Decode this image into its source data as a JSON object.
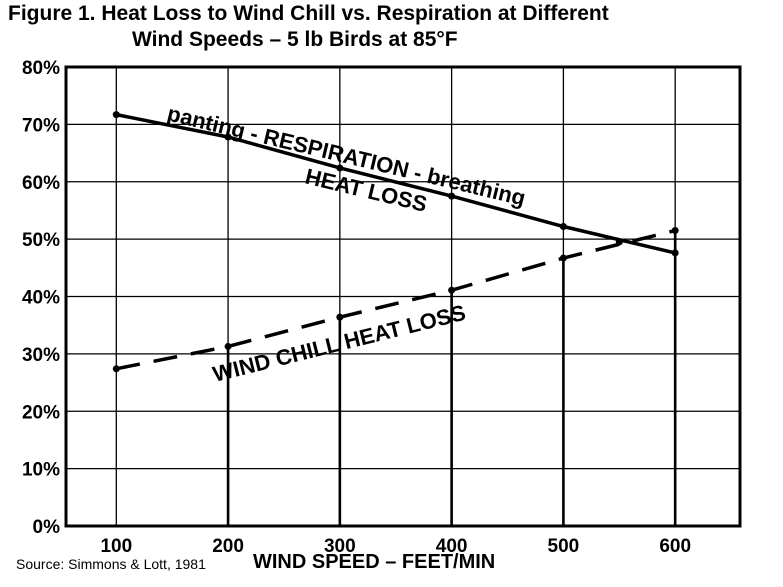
{
  "chart_data": {
    "type": "line",
    "title": "Figure 1. Heat Loss to Wind Chill vs. Respiration at Different",
    "subtitle": "Wind Speeds – 5 lb Birds at 85°F",
    "xlabel": "WIND SPEED – FEET/MIN",
    "ylabel": "",
    "x": [
      100,
      200,
      300,
      400,
      500,
      600
    ],
    "xlim": [
      55,
      658
    ],
    "ylim": [
      0,
      80
    ],
    "xticks": [
      "100",
      "200",
      "300",
      "400",
      "500",
      "600"
    ],
    "yticks": [
      "0%",
      "10%",
      "20%",
      "30%",
      "40%",
      "50%",
      "60%",
      "70%",
      "80%"
    ],
    "grid": true,
    "series": [
      {
        "name": "RESPIRATION HEAT LOSS",
        "style": "solid",
        "values": [
          71.7,
          67.8,
          62.4,
          57.5,
          52.2,
          47.6
        ]
      },
      {
        "name": "WIND CHILL HEAT LOSS",
        "style": "dashed",
        "values": [
          27.4,
          31.3,
          36.4,
          41.1,
          46.7,
          51.5
        ]
      }
    ],
    "crossover": {
      "x": 550,
      "y": 49.5
    },
    "annotations": {
      "respiration": "panting  -  RESPIRATION  -  breathing",
      "respiration_sub": "HEAT LOSS",
      "wind_chill": "WIND CHILL HEAT LOSS"
    },
    "source": "Source: Simmons & Lott, 1981"
  }
}
